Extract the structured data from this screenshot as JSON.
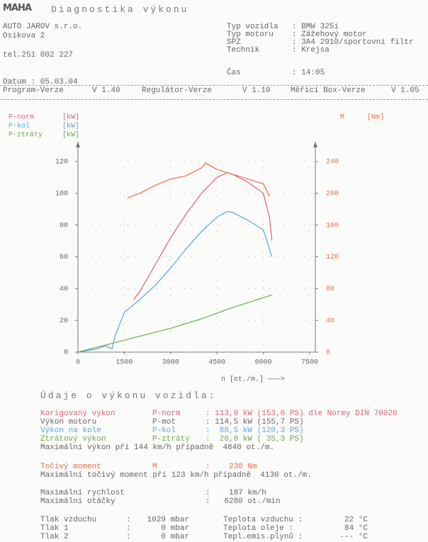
{
  "header": {
    "logo": "MAHA",
    "title": "Diagnostika výkonu",
    "company": [
      "AUTO JAROV s.r.o.",
      "Osikova 2",
      "tel.251 002 227"
    ],
    "date": "Datum : 05.03.04",
    "fields": [
      {
        "label": "Typ vozidla",
        "value": ": BMW 325i"
      },
      {
        "label": "Typ motoru",
        "value": ": Zážehový motor"
      },
      {
        "label": "SPZ",
        "value": ": 3A4 2910/sportovni filtr"
      },
      {
        "label": "Technik",
        "value": ": Krejsa"
      },
      {
        "label": "Čas",
        "value": ": 14:05"
      }
    ],
    "versions": [
      {
        "label": "Program-Verze",
        "value": "V 1.40"
      },
      {
        "label": "Regulátor-Verze",
        "value": "V 1.10"
      },
      {
        "label": "Měřicí Box-Verze",
        "value": "V 1.05"
      }
    ]
  },
  "chart_data": {
    "type": "line",
    "x_label": "n [ot./m.] ———>",
    "xlim": [
      0,
      7500
    ],
    "xticks": [
      0,
      1500,
      3000,
      4500,
      6000,
      7500
    ],
    "ylim": [
      0,
      120
    ],
    "yticks": [
      0,
      20,
      40,
      60,
      80,
      100,
      120
    ],
    "y2lim": [
      0,
      240
    ],
    "y2ticks": [
      0,
      40,
      80,
      120,
      160,
      200,
      240
    ],
    "grid": true,
    "series": [
      {
        "name": "P-norm",
        "unit": "[kW]",
        "color": "#e0607a",
        "x": [
          1800,
          2000,
          2500,
          3000,
          3500,
          4000,
          4500,
          4840,
          5000,
          5500,
          6000,
          6200,
          6280
        ],
        "values": [
          33,
          38,
          55,
          72,
          87,
          100,
          110,
          113,
          112,
          107,
          100,
          85,
          70
        ]
      },
      {
        "name": "P-kol",
        "unit": "[kW]",
        "color": "#5aa8d8",
        "x": [
          0,
          600,
          900,
          1100,
          1200,
          1500,
          2000,
          2500,
          3000,
          3500,
          4000,
          4500,
          4840,
          5000,
          5500,
          6000,
          6280
        ],
        "values": [
          0,
          2,
          4,
          2,
          10,
          25,
          33,
          42,
          53,
          65,
          76,
          85,
          88.5,
          88,
          83,
          77,
          60
        ]
      },
      {
        "name": "P-ztráty",
        "unit": "[kW]",
        "color": "#6aaa50",
        "x": [
          0,
          1000,
          2000,
          3000,
          4000,
          5000,
          6280
        ],
        "values": [
          0,
          5,
          10,
          15,
          21,
          28,
          36
        ]
      },
      {
        "name": "M",
        "unit": "[Nm]",
        "color": "#e8704a",
        "axis": "y2",
        "x": [
          1600,
          2000,
          2500,
          3000,
          3500,
          4000,
          4130,
          4500,
          5000,
          5500,
          6000,
          6200
        ],
        "values": [
          194,
          200,
          210,
          218,
          222,
          232,
          238,
          230,
          224,
          218,
          212,
          196
        ]
      }
    ]
  },
  "performance": {
    "heading": "Údaje o výkonu vozidla:",
    "rows": [
      [
        "Korigovaný výkon",
        "P-norm",
        ": 113,0 kW (153,6 PS) dle Normy DIN 70020"
      ],
      [
        "Výkon motoru",
        "P-mot",
        ": 114,5 kW (155,7 PS)"
      ],
      [
        "Výkon na kole",
        "P-kol",
        ":  88,5 kW (120,3 PS)"
      ],
      [
        "Ztrátový výkon",
        "P-ztráty",
        ":  26,0 kW ( 35,3 PS)"
      ],
      [
        "Maximální výkon při 144 km/h případně  4840 ot./m."
      ],
      [
        "Točivý moment",
        "M",
        ":    238 Nm"
      ],
      [
        "Maximální točivý moment při 123 km/h případně  4130 ot./m."
      ],
      [
        "Maximální rychlost",
        ":    187 km/h"
      ],
      [
        "Maximální otáčky",
        ":   6280 ot./min"
      ]
    ],
    "ambient": [
      [
        "Tlak vzduchu",
        ":",
        "1029 mbar",
        "Teplota vzduchu :",
        "22 °C"
      ],
      [
        "Tlak 1",
        ":",
        "0 mbar",
        "Teplota oleje :",
        "84 °C"
      ],
      [
        "Tlak 2",
        ":",
        "0 mbar",
        "Tepl.emis.plynů :",
        "--- °C"
      ]
    ]
  }
}
